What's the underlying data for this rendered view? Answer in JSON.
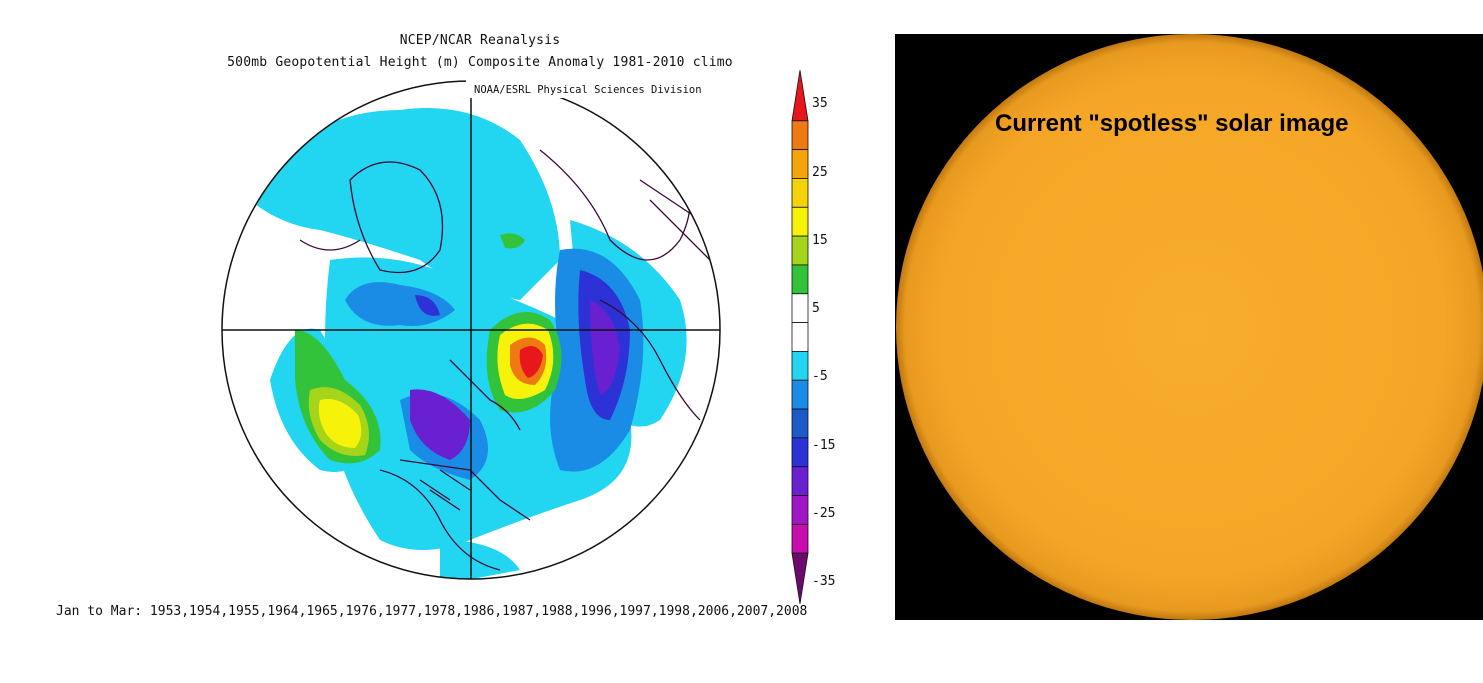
{
  "map": {
    "title_line1": "NCEP/NCAR Reanalysis",
    "title_line2": "500mb Geopotential Height (m) Composite Anomaly 1981-2010 climo",
    "credit": "NOAA/ESRL Physical Sciences Division",
    "years_caption": "Jan to Mar: 1953,1954,1955,1964,1965,1976,1977,1978,1986,1987,1988,1996,1997,1998,2006,2007,2008"
  },
  "colorbar": {
    "labels": [
      "35",
      "25",
      "15",
      "5",
      "-5",
      "-15",
      "-25",
      "-35"
    ],
    "colors": [
      "#e8171c",
      "#f07a12",
      "#f5a50a",
      "#f5d20a",
      "#f7f20a",
      "#a5d51a",
      "#33c33a",
      "#ffffff",
      "#ffffff",
      "#22d5f0",
      "#1a8ce6",
      "#1c5ac8",
      "#2c32d6",
      "#6820d0",
      "#a016c6",
      "#c80cb0",
      "#6e0a6e"
    ]
  },
  "solar": {
    "caption": "Current \"spotless\" solar image",
    "disk_color": "#f7a928",
    "background": "#000000"
  }
}
